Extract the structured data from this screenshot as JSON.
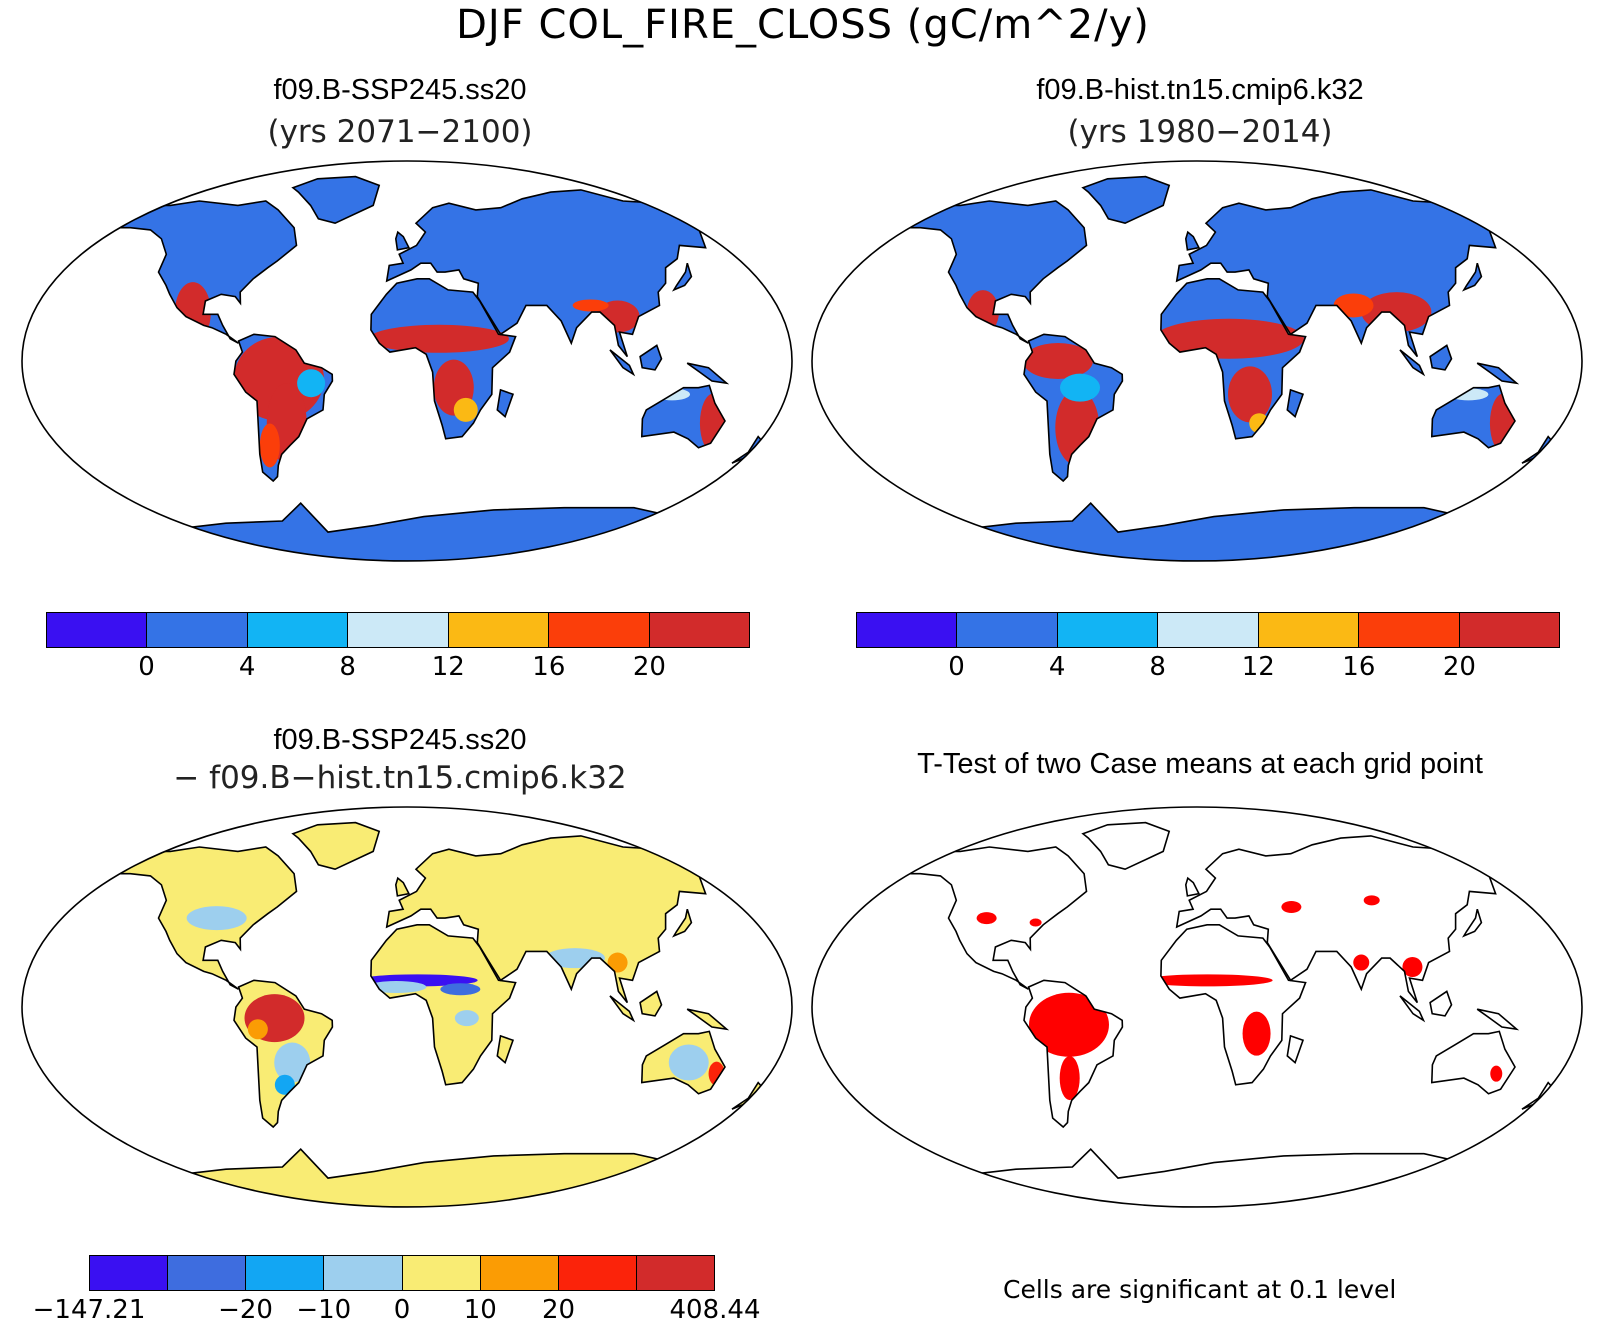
{
  "title": "DJF COL_FIRE_CLOSS (gC/m^2/y)",
  "panels": {
    "top_left": {
      "title": "f09.B-SSP245.ss20",
      "subtitle": "(yrs 2071−2100)"
    },
    "top_right": {
      "title": "f09.B-hist.tn15.cmip6.k32",
      "subtitle": "(yrs 1980−2014)"
    },
    "bottom_left": {
      "title": "f09.B-SSP245.ss20",
      "subtitle": "− f09.B−hist.tn15.cmip6.k32"
    },
    "bottom_right": {
      "title": "T-Test of two Case means at each grid point",
      "note": "Cells are significant at 0.1 level"
    }
  },
  "colorbar_main": {
    "colors": [
      "#3a10f2",
      "#3473e6",
      "#12b4f4",
      "#cce9f7",
      "#fbb914",
      "#fb3e0a",
      "#d22b2b"
    ],
    "labels": [
      "0",
      "4",
      "8",
      "12",
      "16",
      "20"
    ]
  },
  "colorbar_diff": {
    "colors": [
      "#3a10f2",
      "#3e6ddf",
      "#12a6f3",
      "#9dcfee",
      "#f9ec74",
      "#fb9c04",
      "#fb230a",
      "#d22b2b"
    ],
    "labels": [
      "−147.21",
      "−20",
      "−10",
      "0",
      "10",
      "20",
      "408.44"
    ]
  },
  "map_colors": {
    "ocean": "#ffffff",
    "coast": "#000000",
    "sig": "#ff0000"
  }
}
